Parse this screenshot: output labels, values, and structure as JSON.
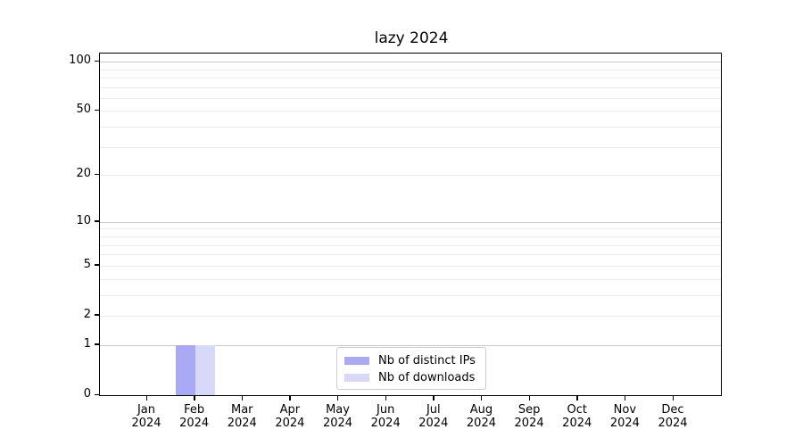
{
  "chart_data": {
    "type": "bar",
    "title": "lazy 2024",
    "categories": [
      "Jan",
      "Feb",
      "Mar",
      "Apr",
      "May",
      "Jun",
      "Jul",
      "Aug",
      "Sep",
      "Oct",
      "Nov",
      "Dec"
    ],
    "tick_year_line": "2024",
    "series": [
      {
        "name": "Nb of distinct IPs",
        "color": "#a9a9f4",
        "values": [
          0,
          1,
          0,
          0,
          0,
          0,
          0,
          0,
          0,
          0,
          0,
          0
        ]
      },
      {
        "name": "Nb of downloads",
        "color": "#d8d8f8",
        "values": [
          0,
          1,
          0,
          0,
          0,
          0,
          0,
          0,
          0,
          0,
          0,
          0
        ]
      }
    ],
    "yscale": "log1p",
    "ylim": [
      0,
      112
    ],
    "yticks": [
      100,
      50,
      20,
      10,
      5,
      2,
      1,
      0
    ],
    "minor_grid_values": [
      90,
      80,
      70,
      60,
      40,
      30,
      9,
      8,
      7,
      6,
      4,
      3
    ],
    "major_grid_values": [
      100,
      10,
      1
    ],
    "grid": true,
    "legend_position": "lower center",
    "xlabel": "",
    "ylabel": ""
  },
  "colors": {
    "background": "#ffffff",
    "axis": "#000000",
    "major_grid": "#c8c8c8",
    "minor_grid": "#ececec",
    "legend_border": "#cccccc",
    "text": "#000000"
  }
}
